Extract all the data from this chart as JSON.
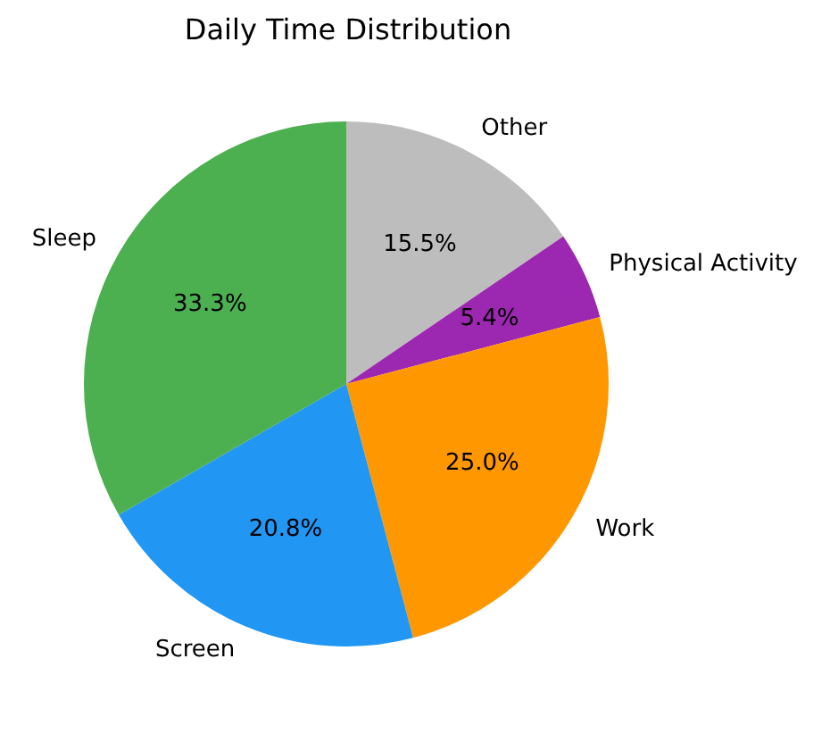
{
  "chart_data": {
    "type": "pie",
    "title": "Daily Time Distribution",
    "categories": [
      "Other",
      "Physical Activity",
      "Work",
      "Screen",
      "Sleep"
    ],
    "values": [
      15.5,
      5.4,
      25.0,
      20.8,
      33.3
    ],
    "colors": [
      "#bdbdbd",
      "#9c27b0",
      "#ff9800",
      "#2196f3",
      "#4caf50"
    ],
    "value_labels": [
      "15.5%",
      "5.4%",
      "25.0%",
      "20.8%",
      "33.3%"
    ],
    "legend": false
  }
}
